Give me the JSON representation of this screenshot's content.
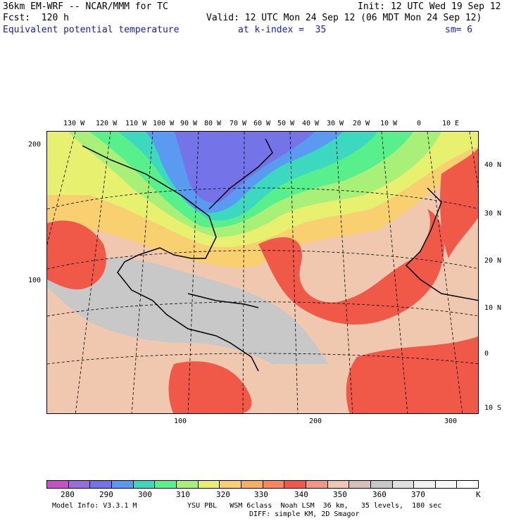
{
  "header": {
    "line1_left": "36km EM-WRF -- NCAR/MMM for TC",
    "line1_right": "Init: 12 UTC Wed 19 Sep 12",
    "line2_left": "Fcst:  120 h",
    "line2_right": "Valid: 12 UTC Mon 24 Sep 12 (06 MDT Mon 24 Sep 12)",
    "field": "Equivalent potential temperature",
    "level": "at k-index =  35",
    "smoothing": "sm= 6"
  },
  "longitude_labels": [
    "130 W",
    "120 W",
    "110 W",
    "100 W",
    "90 W",
    "80 W",
    "70 W",
    "60 W",
    "50 W",
    "40 W",
    "30 W",
    "20 W",
    "10 W",
    "0",
    "10 E"
  ],
  "latitude_labels": [
    "40 N",
    "30 N",
    "20 N",
    "10 N",
    "0",
    "10 S"
  ],
  "grid_y_labels": [
    "200",
    "100"
  ],
  "grid_x_labels": [
    "100",
    "200",
    "300"
  ],
  "colorbar": {
    "labels": [
      "280",
      "290",
      "300",
      "310",
      "320",
      "330",
      "340",
      "350",
      "360",
      "370"
    ],
    "unit": "K",
    "colors": [
      "#c850c8",
      "#9a6ed8",
      "#7474e8",
      "#5a9af0",
      "#3cd8c0",
      "#58f08c",
      "#a8f078",
      "#e8f070",
      "#f8d070",
      "#f8b060",
      "#f88858",
      "#f05848",
      "#f09880",
      "#f0c8b0",
      "#d8c0b8",
      "#c8c8c8",
      "#e0e0e0",
      "#f0f0f0",
      "#f8f8f8",
      "#ffffff"
    ]
  },
  "footer": {
    "model_info": "Model Info: V3.3.1 M",
    "physics": "YSU PBL   WSM 6class  Noah LSM  36 km,   35 levels,  180 sec",
    "diffusion": "DIFF: simple KM, 2D Smagor"
  }
}
